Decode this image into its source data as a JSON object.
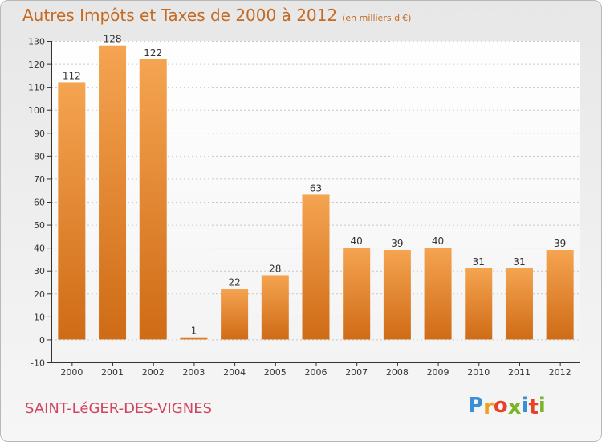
{
  "title": "Autres Impôts et Taxes de 2000 à 2012",
  "subtitle": "(en milliers d'€)",
  "commune": "SAINT-LéGER-DES-VIGNES",
  "logo": {
    "letters": [
      "P",
      "r",
      "o",
      "x",
      "i",
      "t",
      "i"
    ],
    "colors": [
      "#3a8fd6",
      "#f0a020",
      "#e7432a",
      "#7ab52c",
      "#3a8fd6",
      "#e7432a",
      "#7ab52c"
    ]
  },
  "colors": {
    "bar_top": "#f5a451",
    "bar_bottom": "#cf6b16",
    "axis": "#333333",
    "grid": "#c8c8c8",
    "title": "#c46a22",
    "commune": "#d0455f"
  },
  "chart_data": {
    "type": "bar",
    "categories": [
      "2000",
      "2001",
      "2002",
      "2003",
      "2004",
      "2005",
      "2006",
      "2007",
      "2008",
      "2009",
      "2010",
      "2011",
      "2012"
    ],
    "values": [
      112,
      128,
      122,
      1,
      22,
      28,
      63,
      40,
      39,
      40,
      31,
      31,
      39
    ],
    "ylim": [
      -10,
      130
    ],
    "yticks": [
      -10,
      0,
      10,
      20,
      30,
      40,
      50,
      60,
      70,
      80,
      90,
      100,
      110,
      120,
      130
    ],
    "grid": true
  }
}
